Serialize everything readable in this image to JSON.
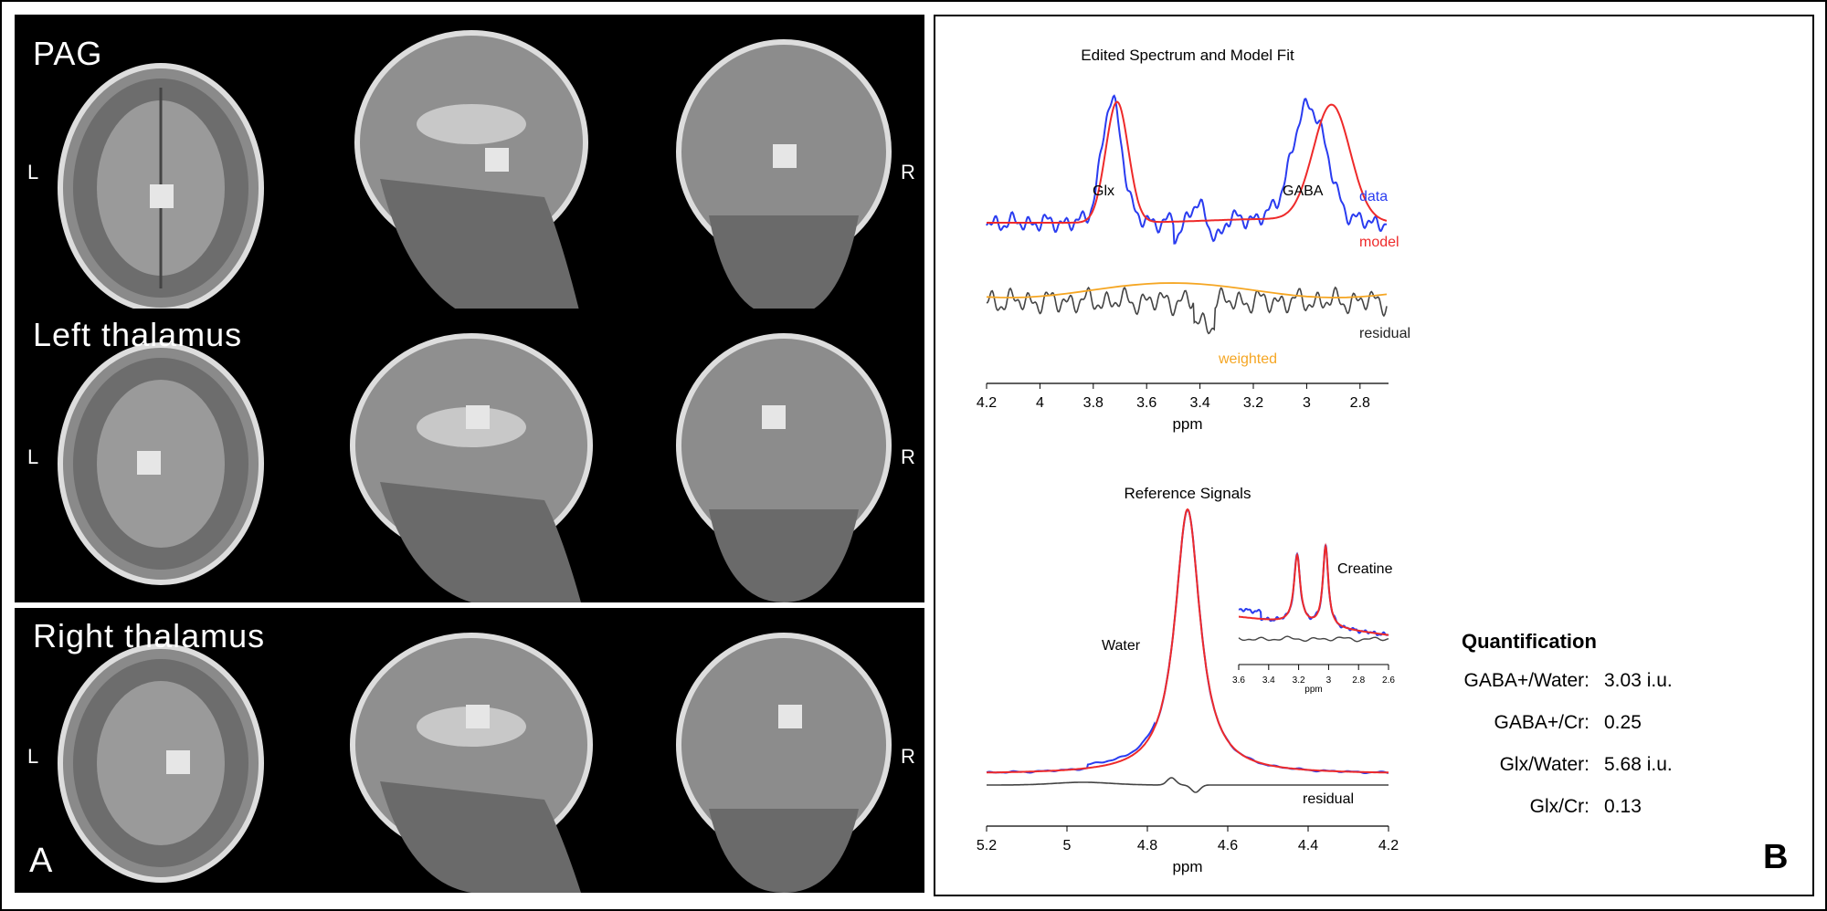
{
  "panel_a": {
    "label": "A",
    "rows": [
      {
        "title": "PAG",
        "left": "L",
        "right": "R"
      },
      {
        "title": "Left thalamus",
        "left": "L",
        "right": "R"
      },
      {
        "title": "Right thalamus",
        "left": "L",
        "right": "R"
      }
    ]
  },
  "panel_b": {
    "label": "B",
    "quantification": {
      "title": "Quantification",
      "items": [
        {
          "label": "GABA+/Water:",
          "value": "3.03 i.u."
        },
        {
          "label": "GABA+/Cr:",
          "value": "0.25"
        },
        {
          "label": "Glx/Water:",
          "value": "5.68 i.u."
        },
        {
          "label": "Glx/Cr:",
          "value": "0.13"
        }
      ]
    }
  },
  "colors": {
    "data": "#2a3cf0",
    "model": "#ee2a2a",
    "residual": "#444444",
    "weighted": "#f5a623"
  },
  "chart_data": [
    {
      "type": "line",
      "title": "Edited Spectrum and Model Fit",
      "xlabel": "ppm",
      "xlim": [
        4.2,
        2.7
      ],
      "x_reversed": true,
      "xticks": [
        "4.2",
        "4",
        "3.8",
        "3.6",
        "3.4",
        "3.2",
        "3",
        "2.8"
      ],
      "peak_labels": [
        "Glx",
        "GABA"
      ],
      "series": [
        {
          "name": "data",
          "color": "#2a3cf0"
        },
        {
          "name": "model",
          "color": "#ee2a2a"
        },
        {
          "name": "residual",
          "color": "#444444"
        },
        {
          "name": "weighted",
          "color": "#f5a623"
        }
      ],
      "peaks_ppm": [
        3.75,
        3.0
      ]
    },
    {
      "type": "line",
      "title": "Reference Signals",
      "xlabel": "ppm",
      "xlim": [
        5.2,
        4.2
      ],
      "x_reversed": true,
      "xticks": [
        "5.2",
        "5",
        "4.8",
        "4.6",
        "4.4",
        "4.2"
      ],
      "peak_labels": [
        "Water"
      ],
      "series_labels": [
        "residual"
      ],
      "peaks_ppm": [
        4.7
      ]
    },
    {
      "type": "line",
      "title": "",
      "xlabel": "ppm",
      "xlim": [
        3.6,
        2.6
      ],
      "x_reversed": true,
      "xticks": [
        "3.6",
        "3.4",
        "3.2",
        "3",
        "2.8",
        "2.6"
      ],
      "peak_labels": [
        "Creatine"
      ],
      "peaks_ppm": [
        3.2,
        3.0
      ]
    }
  ]
}
